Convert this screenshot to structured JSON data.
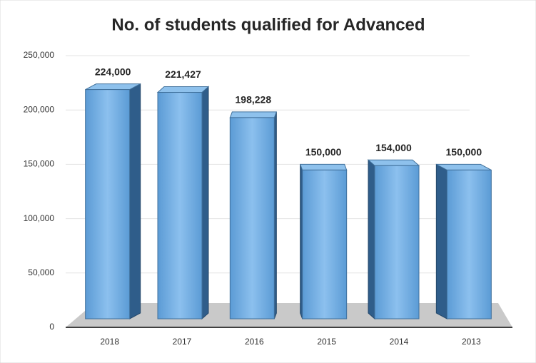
{
  "chart_data": {
    "type": "bar3d",
    "title": "No. of students qualified for Advanced",
    "categories": [
      "2018",
      "2017",
      "2016",
      "2015",
      "2014",
      "2013"
    ],
    "values": [
      224000,
      221427,
      198228,
      150000,
      154000,
      150000
    ],
    "value_labels": [
      "224,000",
      "221,427",
      "198,228",
      "150,000",
      "154,000",
      "150,000"
    ],
    "color": "#5b9bd5",
    "ylim": [
      0,
      250000
    ],
    "yticks": [
      0,
      {
        "value": 50000,
        "label": "50,000"
      },
      {
        "value": 100000,
        "label": "100,000"
      },
      {
        "value": 150000,
        "label": "150,000"
      },
      {
        "value": 200000,
        "label": "200,000"
      },
      {
        "value": 250000,
        "label": "250,000"
      }
    ],
    "grid": true
  }
}
